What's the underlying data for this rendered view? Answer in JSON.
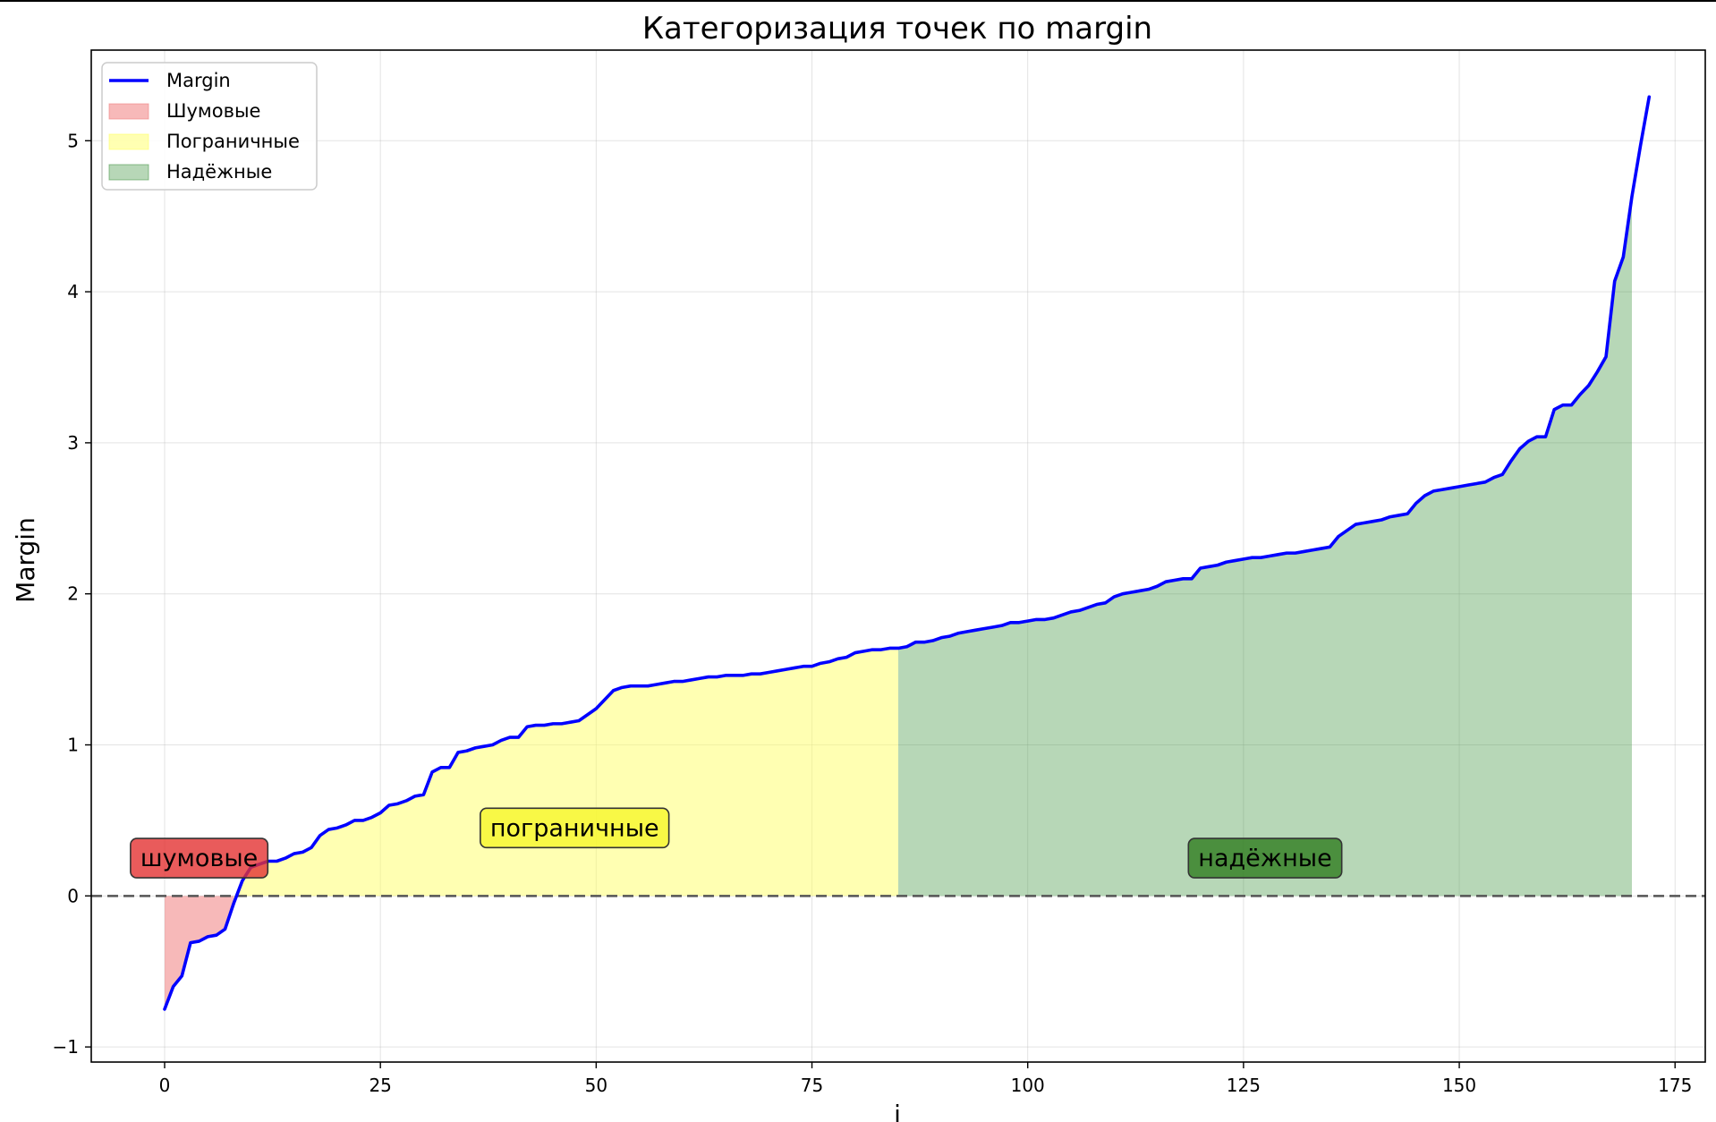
{
  "chart_data": {
    "type": "line",
    "title": "Категоризация точек по margin",
    "xlabel": "i",
    "ylabel": "Margin",
    "xlim": [
      -8.5,
      178.5
    ],
    "ylim": [
      -1.1,
      5.6
    ],
    "xticks": [
      0,
      25,
      50,
      75,
      100,
      125,
      150,
      175
    ],
    "xtick_labels": [
      "0",
      "25",
      "50",
      "75",
      "100",
      "125",
      "150",
      "175"
    ],
    "yticks": [
      -1,
      0,
      1,
      2,
      3,
      4,
      5
    ],
    "ytick_labels": [
      "−1",
      "0",
      "1",
      "2",
      "3",
      "4",
      "5"
    ],
    "grid": true,
    "legend_position": "upper-left",
    "reference_line": {
      "y": 0,
      "style": "dashed",
      "color": "#555555"
    },
    "series": [
      {
        "name": "Margin",
        "color": "#0000ff",
        "x_start": 0,
        "values": [
          -0.75,
          -0.6,
          -0.53,
          -0.31,
          -0.3,
          -0.27,
          -0.26,
          -0.22,
          -0.05,
          0.1,
          0.19,
          0.21,
          0.23,
          0.23,
          0.25,
          0.28,
          0.29,
          0.32,
          0.4,
          0.44,
          0.45,
          0.47,
          0.5,
          0.5,
          0.52,
          0.55,
          0.6,
          0.61,
          0.63,
          0.66,
          0.67,
          0.82,
          0.85,
          0.85,
          0.95,
          0.96,
          0.98,
          0.99,
          1.0,
          1.03,
          1.05,
          1.05,
          1.12,
          1.13,
          1.13,
          1.14,
          1.14,
          1.15,
          1.16,
          1.2,
          1.24,
          1.3,
          1.36,
          1.38,
          1.39,
          1.39,
          1.39,
          1.4,
          1.41,
          1.42,
          1.42,
          1.43,
          1.44,
          1.45,
          1.45,
          1.46,
          1.46,
          1.46,
          1.47,
          1.47,
          1.48,
          1.49,
          1.5,
          1.51,
          1.52,
          1.52,
          1.54,
          1.55,
          1.57,
          1.58,
          1.61,
          1.62,
          1.63,
          1.63,
          1.64,
          1.64,
          1.65,
          1.68,
          1.68,
          1.69,
          1.71,
          1.72,
          1.74,
          1.75,
          1.76,
          1.77,
          1.78,
          1.79,
          1.81,
          1.81,
          1.82,
          1.83,
          1.83,
          1.84,
          1.86,
          1.88,
          1.89,
          1.91,
          1.93,
          1.94,
          1.98,
          2.0,
          2.01,
          2.02,
          2.03,
          2.05,
          2.08,
          2.09,
          2.1,
          2.1,
          2.17,
          2.18,
          2.19,
          2.21,
          2.22,
          2.23,
          2.24,
          2.24,
          2.25,
          2.26,
          2.27,
          2.27,
          2.28,
          2.29,
          2.3,
          2.31,
          2.38,
          2.42,
          2.46,
          2.47,
          2.48,
          2.49,
          2.51,
          2.52,
          2.53,
          2.6,
          2.65,
          2.68,
          2.69,
          2.7,
          2.71,
          2.72,
          2.73,
          2.74,
          2.77,
          2.79,
          2.88,
          2.96,
          3.01,
          3.04,
          3.04,
          3.22,
          3.25,
          3.25,
          3.32,
          3.38,
          3.47,
          3.57,
          4.07,
          4.23,
          4.63,
          4.97,
          5.29
        ]
      }
    ],
    "regions": [
      {
        "name": "Шумовые",
        "color": "#f08080",
        "opacity": 0.55,
        "x_from": 0,
        "x_to": 8
      },
      {
        "name": "Пограничные",
        "color": "#ffff66",
        "opacity": 0.5,
        "x_from": 8,
        "x_to": 85
      },
      {
        "name": "Надёжные",
        "color": "#4c9a4c",
        "opacity": 0.4,
        "x_from": 85,
        "x_to": 170
      }
    ],
    "annotations": [
      {
        "text": "шумовые",
        "x": 4,
        "y": 0.25,
        "bg": "#e33232",
        "bg_opacity": 0.8
      },
      {
        "text": "пограничные",
        "x": 47.5,
        "y": 0.45,
        "bg": "#f6f62a",
        "bg_opacity": 0.8
      },
      {
        "text": "надёжные",
        "x": 127.5,
        "y": 0.25,
        "bg": "#2f7d1f",
        "bg_opacity": 0.8
      }
    ],
    "legend": [
      {
        "label": "Margin",
        "kind": "line",
        "color": "#0000ff"
      },
      {
        "label": "Шумовые",
        "kind": "patch",
        "color": "#f08080",
        "opacity": 0.55
      },
      {
        "label": "Пограничные",
        "kind": "patch",
        "color": "#ffff66",
        "opacity": 0.5
      },
      {
        "label": "Надёжные",
        "kind": "patch",
        "color": "#4c9a4c",
        "opacity": 0.4
      }
    ]
  }
}
